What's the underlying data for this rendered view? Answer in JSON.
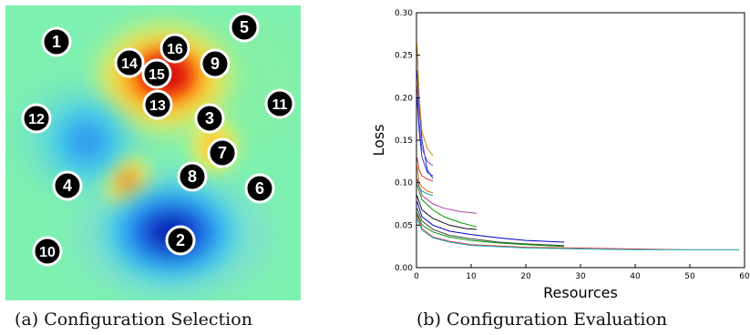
{
  "captions": {
    "a": "(a) Configuration Selection",
    "b": "(b) Configuration Evaluation"
  },
  "heatmap": {
    "markers": [
      {
        "label": "1"
      },
      {
        "label": "2"
      },
      {
        "label": "3"
      },
      {
        "label": "4"
      },
      {
        "label": "5"
      },
      {
        "label": "6"
      },
      {
        "label": "7"
      },
      {
        "label": "8"
      },
      {
        "label": "9"
      },
      {
        "label": "10"
      },
      {
        "label": "11"
      },
      {
        "label": "12"
      },
      {
        "label": "13"
      },
      {
        "label": "14"
      },
      {
        "label": "15"
      },
      {
        "label": "16"
      }
    ]
  },
  "chart_data": {
    "type": "line",
    "title": "",
    "xlabel": "Resources",
    "ylabel": "Loss",
    "xlim": [
      0,
      60
    ],
    "ylim": [
      0,
      0.3
    ],
    "xticks": [
      "0",
      "10",
      "20",
      "30",
      "40",
      "50",
      "60"
    ],
    "yticks": [
      "0.00",
      "0.05",
      "0.10",
      "0.15",
      "0.20",
      "0.25",
      "0.30"
    ],
    "grid": false,
    "legend": "none",
    "series": [
      {
        "color": "#2233cc",
        "x": [
          0.1,
          0.5,
          1,
          2,
          3
        ],
        "y": [
          0.232,
          0.19,
          0.15,
          0.115,
          0.105
        ]
      },
      {
        "color": "#cc8800",
        "x": [
          0.1,
          0.5,
          1,
          2,
          3
        ],
        "y": [
          0.265,
          0.2,
          0.16,
          0.14,
          0.132
        ]
      },
      {
        "color": "#8844cc",
        "x": [
          0.1,
          0.5,
          1,
          2,
          3
        ],
        "y": [
          0.215,
          0.17,
          0.14,
          0.125,
          0.12
        ]
      },
      {
        "color": "#2233cc",
        "x": [
          0.1,
          0.5,
          1,
          2,
          3
        ],
        "y": [
          0.2,
          0.16,
          0.13,
          0.112,
          0.108
        ]
      },
      {
        "color": "#cc3333",
        "x": [
          0.1,
          0.5,
          1,
          2,
          3
        ],
        "y": [
          0.13,
          0.115,
          0.108,
          0.104,
          0.102
        ]
      },
      {
        "color": "#cc7700",
        "x": [
          0.1,
          0.5,
          1,
          2,
          3
        ],
        "y": [
          0.12,
          0.1,
          0.095,
          0.09,
          0.088
        ]
      },
      {
        "color": "#009999",
        "x": [
          0.1,
          0.5,
          1,
          2,
          3
        ],
        "y": [
          0.105,
          0.095,
          0.09,
          0.087,
          0.085
        ]
      },
      {
        "color": "#009900",
        "x": [
          0.1,
          1,
          3,
          5,
          8,
          11
        ],
        "y": [
          0.098,
          0.08,
          0.068,
          0.06,
          0.053,
          0.048
        ]
      },
      {
        "color": "#aa44aa",
        "x": [
          0.1,
          1,
          3,
          5,
          8,
          11
        ],
        "y": [
          0.105,
          0.085,
          0.075,
          0.07,
          0.066,
          0.064
        ]
      },
      {
        "color": "#111111",
        "x": [
          0.1,
          1,
          3,
          6,
          9,
          11
        ],
        "y": [
          0.085,
          0.068,
          0.058,
          0.05,
          0.046,
          0.045
        ]
      },
      {
        "color": "#0000cc",
        "x": [
          0.1,
          1,
          3,
          6,
          10,
          15,
          20,
          27
        ],
        "y": [
          0.078,
          0.06,
          0.05,
          0.043,
          0.039,
          0.035,
          0.032,
          0.03
        ]
      },
      {
        "color": "#444444",
        "x": [
          0.1,
          1,
          3,
          6,
          10,
          15,
          20,
          27
        ],
        "y": [
          0.07,
          0.055,
          0.045,
          0.038,
          0.034,
          0.03,
          0.028,
          0.026
        ]
      },
      {
        "color": "#009900",
        "x": [
          0.1,
          1,
          3,
          6,
          10,
          15,
          20,
          27
        ],
        "y": [
          0.065,
          0.05,
          0.042,
          0.036,
          0.032,
          0.029,
          0.027,
          0.025
        ]
      },
      {
        "color": "#cc3333",
        "x": [
          0.1,
          1,
          3,
          6,
          10,
          20,
          30,
          40,
          50,
          59
        ],
        "y": [
          0.062,
          0.046,
          0.036,
          0.031,
          0.027,
          0.024,
          0.023,
          0.022,
          0.021,
          0.021
        ]
      },
      {
        "color": "#22bbcc",
        "x": [
          0.1,
          1,
          3,
          6,
          10,
          20,
          30,
          40,
          50,
          59
        ],
        "y": [
          0.058,
          0.044,
          0.035,
          0.03,
          0.026,
          0.023,
          0.022,
          0.021,
          0.021,
          0.021
        ]
      }
    ]
  }
}
